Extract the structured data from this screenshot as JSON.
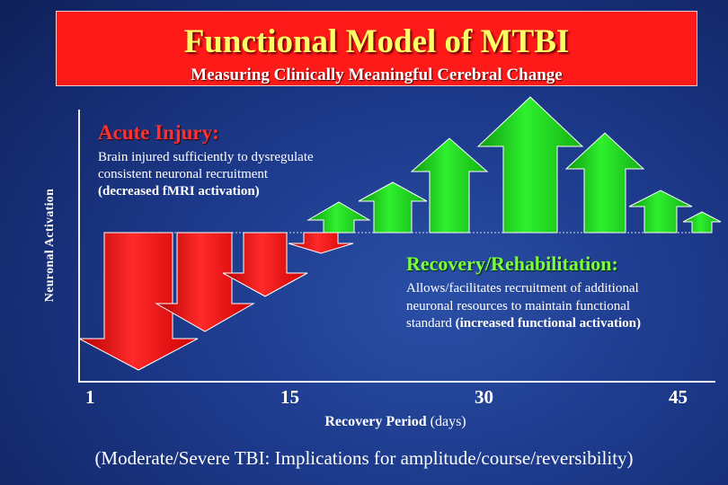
{
  "header": {
    "title": "Functional Model of MTBI",
    "subtitle": "Measuring Clinically Meaningful Cerebral Change"
  },
  "y_axis_label": "Neuronal Activation",
  "acute": {
    "title": "Acute Injury:",
    "body_line1": "Brain injured sufficiently to dysregulate",
    "body_line2": "consistent neuronal recruitment",
    "body_line3": "(decreased fMRI activation)"
  },
  "recovery": {
    "title": "Recovery/Rehabilitation:",
    "body_line1": "Allows/facilitates recruitment of additional",
    "body_line2": "neuronal resources to maintain functional",
    "body_line3_plain": "standard ",
    "body_line3_bold": "(increased functional activation)"
  },
  "x_axis": {
    "ticks": [
      "1",
      "15",
      "30",
      "45"
    ],
    "label_bold": "Recovery Period",
    "label_plain": " (days)"
  },
  "footnote": "(Moderate/Severe TBI:  Implications for amplitude/course/reversibility)",
  "colors": {
    "title_bg": "#ff1a1a",
    "title_text": "#ffff66",
    "acute_title": "#ff3030",
    "recovery_title": "#7cff3a",
    "down_arrow": "#ff1a1a",
    "up_arrow": "#22dd22"
  },
  "arrows": {
    "down_count": 4,
    "up_count": 7
  }
}
